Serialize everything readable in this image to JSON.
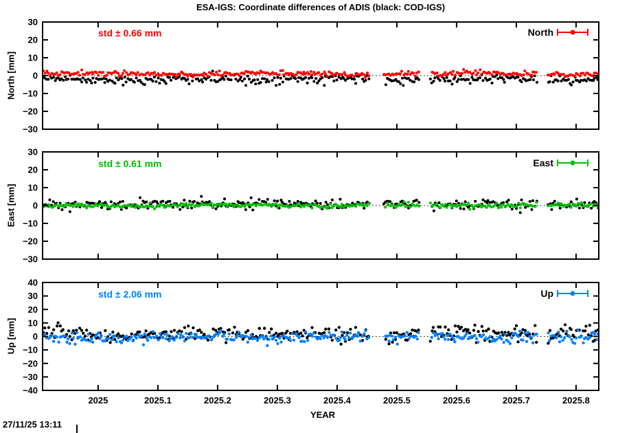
{
  "title": "ESA-IGS: Coordinate differences of ADIS (black: COD-IGS)",
  "timestamp": "27/11/25 13:11",
  "chart_data": {
    "type": "scatter",
    "xlabel": "YEAR",
    "x_range": [
      2024.907,
      2025.838
    ],
    "x_ticks": [
      2025,
      2025.1,
      2025.2,
      2025.3,
      2025.4,
      2025.5,
      2025.6,
      2025.7,
      2025.8
    ],
    "x_tick_labels": [
      "2025",
      "2025.1",
      "2025.2",
      "2025.3",
      "2025.4",
      "2025.5",
      "2025.6",
      "2025.7",
      "2025.8"
    ],
    "n_points": 335,
    "gaps": [
      [
        2025.455,
        2025.478
      ],
      [
        2025.538,
        2025.556
      ],
      [
        2025.735,
        2025.752
      ]
    ],
    "grid": false,
    "zero_line": "dotted",
    "panels": [
      {
        "name": "North",
        "ylabel": "North [mm]",
        "std_label": "std ± 0.66 mm",
        "std_value_mm": 0.66,
        "legend_label": "North",
        "color": "#ff0000",
        "ylim": [
          -30,
          30
        ],
        "y_ticks": [
          30,
          20,
          10,
          0,
          -10,
          -20,
          -30
        ],
        "y_tick_labels": [
          "30",
          "20",
          "10",
          "0",
          "−10",
          "−20",
          "−30"
        ],
        "series": [
          {
            "name": "COD-IGS",
            "color": "#000000",
            "mean": -2.0,
            "std": 1.05,
            "amp": 0.5,
            "freq": 4.0,
            "phase": 1.3,
            "seed": 11,
            "outlier_p": 0.05,
            "outlier_amp": 2.5,
            "dir": -1
          },
          {
            "name": "ESA-IGS",
            "color": "#ff0000",
            "mean": 1.1,
            "std": 0.66,
            "amp": 0.45,
            "freq": 3.0,
            "phase": 0.4,
            "seed": 12,
            "outlier_p": 0.02,
            "outlier_amp": 1.5,
            "dir": 1
          }
        ]
      },
      {
        "name": "East",
        "ylabel": "East [mm]",
        "std_label": "std ± 0.61 mm",
        "std_value_mm": 0.61,
        "legend_label": "East",
        "color": "#00c000",
        "ylim": [
          -30,
          30
        ],
        "y_ticks": [
          30,
          20,
          10,
          0,
          -10,
          -20,
          -30
        ],
        "y_tick_labels": [
          "30",
          "20",
          "10",
          "0",
          "−10",
          "−20",
          "−30"
        ],
        "series": [
          {
            "name": "COD-IGS",
            "color": "#000000",
            "mean": 0.8,
            "std": 1.25,
            "amp": 0.4,
            "freq": 5.0,
            "phase": 2.1,
            "seed": 21,
            "outlier_p": 0.05,
            "outlier_amp": 2.5,
            "dir": -1
          },
          {
            "name": "ESA-IGS",
            "color": "#00c000",
            "mean": 0.0,
            "std": 0.61,
            "amp": 0.3,
            "freq": 3.5,
            "phase": 1.0,
            "seed": 22,
            "outlier_p": 0.02,
            "outlier_amp": 1.5,
            "dir": -1
          }
        ]
      },
      {
        "name": "Up",
        "ylabel": "Up [mm]",
        "std_label": "std ± 2.06 mm",
        "std_value_mm": 2.06,
        "legend_label": "Up",
        "color": "#0080ff",
        "ylim": [
          -40,
          40
        ],
        "y_ticks": [
          40,
          30,
          20,
          10,
          0,
          -10,
          -20,
          -30,
          -40
        ],
        "y_tick_labels": [
          "40",
          "30",
          "20",
          "10",
          "0",
          "−10",
          "−20",
          "−30",
          "−40"
        ],
        "series": [
          {
            "name": "COD-IGS",
            "color": "#000000",
            "mean": 1.6,
            "std": 2.9,
            "amp": 1.2,
            "freq": 4.5,
            "phase": 0.7,
            "seed": 31,
            "outlier_p": 0.07,
            "outlier_amp": 5.0,
            "dir": 1
          },
          {
            "name": "ESA-IGS",
            "color": "#0080ff",
            "mean": -0.4,
            "std": 2.06,
            "amp": 0.8,
            "freq": 3.2,
            "phase": 2.6,
            "seed": 32,
            "outlier_p": 0.03,
            "outlier_amp": 3.0,
            "dir": -1
          }
        ]
      }
    ]
  }
}
